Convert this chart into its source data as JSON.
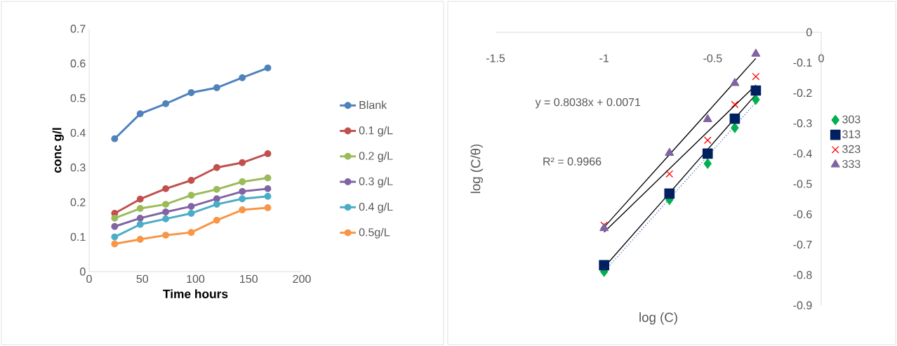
{
  "chart_data": [
    {
      "type": "line",
      "xlabel": "Time hours",
      "ylabel": "conc g/l",
      "x": [
        24,
        48,
        72,
        96,
        120,
        144,
        168
      ],
      "xlim": [
        0,
        200
      ],
      "xticks": [
        0,
        50,
        100,
        150,
        200
      ],
      "ylim": [
        0,
        0.7
      ],
      "yticks": [
        0,
        0.1,
        0.2,
        0.3,
        0.4,
        0.5,
        0.6,
        0.7
      ],
      "marker": "circle",
      "legend": "right",
      "series": [
        {
          "name": "Blank",
          "color": "#4f81bd",
          "values": [
            0.383,
            0.455,
            0.484,
            0.516,
            0.53,
            0.559,
            0.587
          ]
        },
        {
          "name": "0.1 g/L",
          "color": "#c0504d",
          "values": [
            0.168,
            0.209,
            0.239,
            0.263,
            0.3,
            0.314,
            0.34
          ]
        },
        {
          "name": "0.2 g/L",
          "color": "#9bbb59",
          "values": [
            0.154,
            0.182,
            0.194,
            0.22,
            0.237,
            0.259,
            0.27
          ]
        },
        {
          "name": "0.3 g/L",
          "color": "#8064a2",
          "values": [
            0.13,
            0.154,
            0.172,
            0.188,
            0.21,
            0.231,
            0.239
          ]
        },
        {
          "name": "0.4 g/L",
          "color": "#4bacc6",
          "values": [
            0.1,
            0.136,
            0.152,
            0.168,
            0.194,
            0.21,
            0.217
          ]
        },
        {
          "name": "0.5g/L",
          "color": "#f79646",
          "values": [
            0.08,
            0.093,
            0.105,
            0.113,
            0.148,
            0.178,
            0.184
          ]
        }
      ]
    },
    {
      "type": "scatter",
      "xlabel": "log (C)",
      "ylabel": "log (C/θ)",
      "x": [
        -1,
        -0.699,
        -0.523,
        -0.398,
        -0.301
      ],
      "xlim": [
        -1.5,
        0
      ],
      "xticks": [
        -1.5,
        -1,
        -0.5,
        0
      ],
      "ylim": [
        -0.9,
        0
      ],
      "yticks": [
        0,
        -0.1,
        -0.2,
        -0.3,
        -0.4,
        -0.5,
        -0.6,
        -0.7,
        -0.8,
        -0.9
      ],
      "legend": "right",
      "annotations": [
        "y = 0.8038x + 0.0071",
        "R² = 0.9966"
      ],
      "series": [
        {
          "name": "303",
          "color": "#00b050",
          "marker": "diamond",
          "values": [
            -0.789,
            -0.552,
            -0.433,
            -0.315,
            -0.222
          ]
        },
        {
          "name": "313",
          "color": "#002060",
          "marker": "square",
          "values": [
            -0.768,
            -0.532,
            -0.4,
            -0.285,
            -0.192
          ]
        },
        {
          "name": "323",
          "color": "#ff0000",
          "marker": "cross",
          "values": [
            -0.636,
            -0.467,
            -0.356,
            -0.238,
            -0.146
          ]
        },
        {
          "name": "333",
          "color": "#8064a2",
          "marker": "triangle",
          "values": [
            -0.646,
            -0.398,
            -0.287,
            -0.168,
            -0.071
          ]
        },
        {
          "type": "line",
          "color": "#000000",
          "marker": "none",
          "x": [
            -1,
            -0.699,
            -0.523,
            -0.398,
            -0.301
          ],
          "values": [
            -0.643,
            -0.403,
            -0.263,
            -0.163,
            -0.086
          ]
        },
        {
          "type": "line",
          "color": "#000000",
          "marker": "none",
          "x": [
            -1,
            -0.699,
            -0.523,
            -0.398,
            -0.301
          ],
          "values": [
            -0.659,
            -0.45,
            -0.328,
            -0.241,
            -0.174
          ]
        },
        {
          "type": "line",
          "color": "#000000",
          "marker": "none",
          "x": [
            -1,
            -0.699,
            -0.523,
            -0.398,
            -0.301
          ],
          "values": [
            -0.775,
            -0.53,
            -0.386,
            -0.284,
            -0.205
          ]
        },
        {
          "type": "line",
          "color": "#4f81bd",
          "marker": "none",
          "line_style": "dotted",
          "x": [
            -1,
            -0.699,
            -0.523,
            -0.398,
            -0.301
          ],
          "values": [
            -0.789,
            -0.549,
            -0.408,
            -0.309,
            -0.231
          ]
        }
      ]
    }
  ]
}
